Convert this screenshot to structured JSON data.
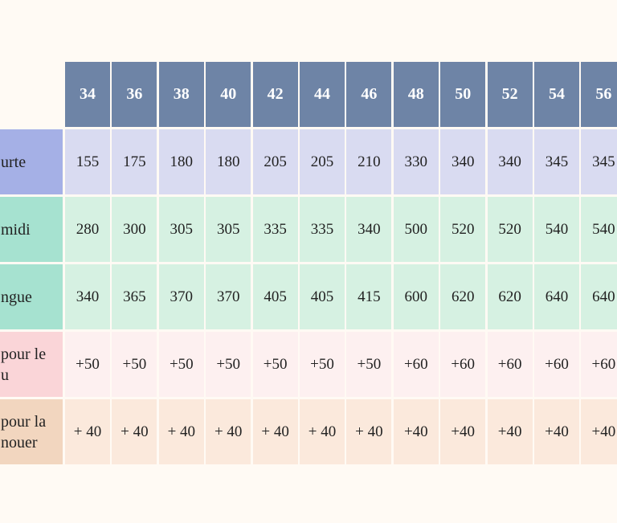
{
  "header": {
    "sizes": [
      "34",
      "36",
      "38",
      "40",
      "42",
      "44",
      "46",
      "48",
      "50",
      "52",
      "54",
      "56"
    ]
  },
  "rows": [
    {
      "label": "urte",
      "label_color": "#a5b0e6",
      "cell_color": "#d9dbf1",
      "values": [
        "155",
        "175",
        "180",
        "180",
        "205",
        "205",
        "210",
        "330",
        "340",
        "340",
        "345",
        "345"
      ]
    },
    {
      "label": "midi",
      "label_color": "#a6e2d0",
      "cell_color": "#d6f1e2",
      "values": [
        "280",
        "300",
        "305",
        "305",
        "335",
        "335",
        "340",
        "500",
        "520",
        "520",
        "540",
        "540"
      ]
    },
    {
      "label": "ngue",
      "label_color": "#a6e2d0",
      "cell_color": "#d6f1e2",
      "values": [
        "340",
        "365",
        "370",
        "370",
        "405",
        "405",
        "415",
        "600",
        "620",
        "620",
        "640",
        "640"
      ]
    },
    {
      "label": "pour le\nu",
      "label_color": "#fad5d8",
      "cell_color": "#fdf0f0",
      "values": [
        "+50",
        "+50",
        "+50",
        "+50",
        "+50",
        "+50",
        "+50",
        "+60",
        "+60",
        "+60",
        "+60",
        "+60"
      ]
    },
    {
      "label": "pour la\nnouer",
      "label_color": "#f2d6bf",
      "cell_color": "#fbe9dc",
      "values": [
        "+ 40",
        "+ 40",
        "+ 40",
        "+ 40",
        "+ 40",
        "+ 40",
        "+ 40",
        "+40",
        "+40",
        "+40",
        "+40",
        "+40"
      ]
    }
  ],
  "colors": {
    "header": "#6e84a6",
    "background": "#fffaf4"
  }
}
